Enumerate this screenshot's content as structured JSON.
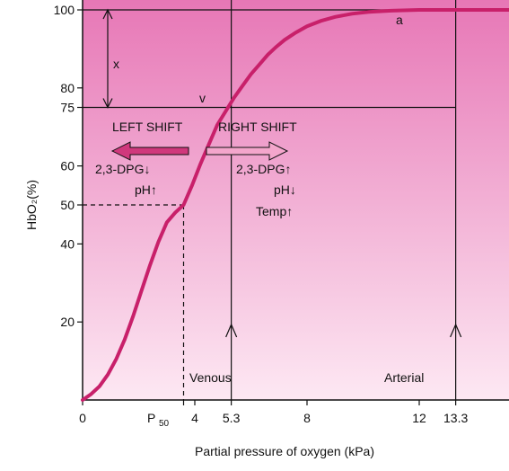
{
  "colors": {
    "background_gradient_top": "#e777b6",
    "background_gradient_bottom": "#fde8f3",
    "curve": "#c8206a",
    "axis": "#111111",
    "arrow_fill": "#d0387c",
    "arrow_fill_light": "#f4a6cc"
  },
  "chart_data": {
    "type": "line",
    "title": "",
    "xlabel": "Partial pressure of oxygen (kPa)",
    "ylabel": "HbO₂(%)",
    "xlim": [
      0,
      15.2
    ],
    "ylim": [
      0,
      100
    ],
    "grid": false,
    "x_tick_labels": [
      {
        "value": 0,
        "label": "0"
      },
      {
        "value": 4,
        "label": "4"
      },
      {
        "value": 5.3,
        "label": "5.3"
      },
      {
        "value": 8,
        "label": "8"
      },
      {
        "value": 12,
        "label": "12"
      },
      {
        "value": 13.3,
        "label": "13.3"
      }
    ],
    "p50_label": {
      "value": 3.6,
      "main": "P",
      "sub": "50"
    },
    "y_tick_labels": [
      {
        "value": 20,
        "label": "20"
      },
      {
        "value": 40,
        "label": "40"
      },
      {
        "value": 50,
        "label": "50"
      },
      {
        "value": 60,
        "label": "60"
      },
      {
        "value": 75,
        "label": "75"
      },
      {
        "value": 80,
        "label": "80"
      },
      {
        "value": 100,
        "label": "100"
      }
    ],
    "series": [
      {
        "x": [
          0,
          0.3,
          0.6,
          0.9,
          1.2,
          1.5,
          1.8,
          2.1,
          2.4,
          2.7,
          3.0,
          3.3,
          3.6,
          3.9,
          4.2,
          4.5,
          4.8,
          5.1,
          5.4,
          5.7,
          6.0,
          6.3,
          6.6,
          6.9,
          7.2,
          7.6,
          8.0,
          8.5,
          9.0,
          9.6,
          10.2,
          11.0,
          12.0,
          13.3,
          14.2,
          15.2
        ],
        "y": [
          0,
          1.5,
          3.5,
          6.5,
          10.5,
          15.5,
          21.5,
          28,
          34.5,
          40.5,
          45.5,
          48,
          50,
          55,
          60.5,
          65.5,
          70.5,
          74,
          77.5,
          80.5,
          83.5,
          86,
          88.5,
          90.5,
          92.3,
          94.2,
          95.8,
          97.2,
          98.2,
          99.0,
          99.5,
          99.8,
          100,
          100,
          100,
          100
        ]
      }
    ],
    "annotations": {
      "point_a": "a",
      "point_v": "v",
      "x_label": "x",
      "venous": "Venous",
      "arterial": "Arterial",
      "left_shift": "LEFT SHIFT",
      "right_shift": "RIGHT SHIFT",
      "left_dpg": "2,3-DPG↓",
      "left_ph": "pH↑",
      "right_dpg": "2,3-DPG↑",
      "right_ph": "pH↓",
      "right_temp": "Temp↑"
    }
  }
}
